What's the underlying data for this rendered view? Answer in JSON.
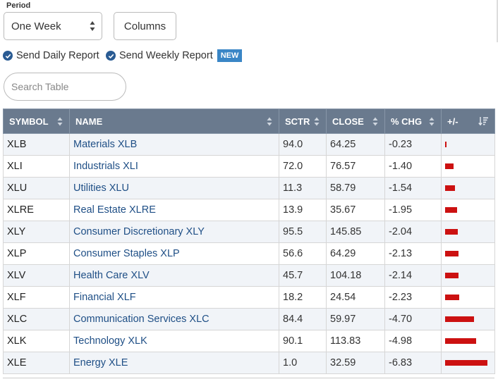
{
  "period": {
    "label": "Period",
    "selected": "One Week"
  },
  "columns_label": "Columns",
  "reports": {
    "daily": "Send Daily Report",
    "weekly": "Send Weekly Report",
    "new_badge": "NEW"
  },
  "search": {
    "placeholder": "Search Table"
  },
  "table": {
    "headers": {
      "symbol": "SYMBOL",
      "name": "NAME",
      "sctr": "SCTR",
      "close": "CLOSE",
      "pct_chg": "% CHG",
      "plus_minus": "+/-"
    },
    "rows": [
      {
        "symbol": "XLB",
        "name": "Materials XLB",
        "sctr": "94.0",
        "close": "64.25",
        "pct_chg": "-0.23",
        "change": -0.23
      },
      {
        "symbol": "XLI",
        "name": "Industrials XLI",
        "sctr": "72.0",
        "close": "76.57",
        "pct_chg": "-1.40",
        "change": -1.4
      },
      {
        "symbol": "XLU",
        "name": "Utilities XLU",
        "sctr": "11.3",
        "close": "58.79",
        "pct_chg": "-1.54",
        "change": -1.54
      },
      {
        "symbol": "XLRE",
        "name": "Real Estate XLRE",
        "sctr": "13.9",
        "close": "35.67",
        "pct_chg": "-1.95",
        "change": -1.95
      },
      {
        "symbol": "XLY",
        "name": "Consumer Discretionary XLY",
        "sctr": "95.5",
        "close": "145.85",
        "pct_chg": "-2.04",
        "change": -2.04
      },
      {
        "symbol": "XLP",
        "name": "Consumer Staples XLP",
        "sctr": "56.6",
        "close": "64.29",
        "pct_chg": "-2.13",
        "change": -2.13
      },
      {
        "symbol": "XLV",
        "name": "Health Care XLV",
        "sctr": "45.7",
        "close": "104.18",
        "pct_chg": "-2.14",
        "change": -2.14
      },
      {
        "symbol": "XLF",
        "name": "Financial XLF",
        "sctr": "18.2",
        "close": "24.54",
        "pct_chg": "-2.23",
        "change": -2.23
      },
      {
        "symbol": "XLC",
        "name": "Communication Services XLC",
        "sctr": "84.4",
        "close": "59.97",
        "pct_chg": "-4.70",
        "change": -4.7
      },
      {
        "symbol": "XLK",
        "name": "Technology XLK",
        "sctr": "90.1",
        "close": "113.83",
        "pct_chg": "-4.98",
        "change": -4.98
      },
      {
        "symbol": "XLE",
        "name": "Energy XLE",
        "sctr": "1.0",
        "close": "32.59",
        "pct_chg": "-6.83",
        "change": -6.83
      }
    ]
  },
  "colors": {
    "header_bg": "#6a7a8e",
    "link": "#1f4f86",
    "negative_bar": "#cc1111",
    "new_badge": "#3a86c6",
    "check": "#2a5b93"
  },
  "icons": {
    "select": "up-down-arrows-icon",
    "check": "check-circle-icon",
    "sort": "sort-arrows-icon",
    "sort_desc": "sort-descending-icon"
  }
}
